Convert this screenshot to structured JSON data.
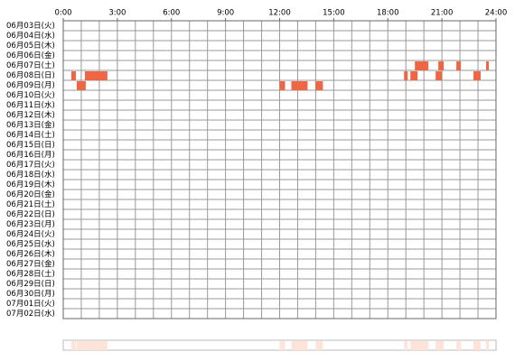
{
  "chart_data": {
    "type": "timeline",
    "xlim": [
      0,
      24
    ],
    "xticks": [
      {
        "value": 0,
        "label": "0:00"
      },
      {
        "value": 3,
        "label": "3:00"
      },
      {
        "value": 6,
        "label": "6:00"
      },
      {
        "value": 9,
        "label": "9:00"
      },
      {
        "value": 12,
        "label": "12:00"
      },
      {
        "value": 15,
        "label": "15:00"
      },
      {
        "value": 18,
        "label": "18:00"
      },
      {
        "value": 21,
        "label": "21:00"
      },
      {
        "value": 24,
        "label": "24:00"
      }
    ],
    "color": "#ee6644",
    "overview_color": "#fde3d8",
    "grid_color": "#999999",
    "categories": [
      "06月03日(火)",
      "06月04日(水)",
      "06月05日(木)",
      "06月06日(金)",
      "06月07日(土)",
      "06月08日(日)",
      "06月09日(月)",
      "06月10日(火)",
      "06月11日(水)",
      "06月12日(木)",
      "06月13日(金)",
      "06月14日(土)",
      "06月15日(日)",
      "06月16日(月)",
      "06月17日(火)",
      "06月18日(水)",
      "06月19日(木)",
      "06月20日(金)",
      "06月21日(土)",
      "06月22日(日)",
      "06月23日(月)",
      "06月24日(火)",
      "06月25日(水)",
      "06月26日(木)",
      "06月27日(金)",
      "06月28日(土)",
      "06月29日(日)",
      "06月30日(月)",
      "07月01日(火)",
      "07月02日(水)"
    ],
    "values": [
      [],
      [],
      [],
      [],
      [
        [
          19.5,
          20.25
        ],
        [
          20.8,
          21.1
        ],
        [
          21.8,
          22.05
        ],
        [
          23.45,
          23.6
        ]
      ],
      [
        [
          0.45,
          0.7
        ],
        [
          1.2,
          2.45
        ],
        [
          18.9,
          19.1
        ],
        [
          19.25,
          19.65
        ],
        [
          20.65,
          21.0
        ],
        [
          22.75,
          23.15
        ]
      ],
      [
        [
          0.75,
          1.25
        ],
        [
          12.0,
          12.3
        ],
        [
          12.65,
          13.55
        ],
        [
          14.0,
          14.4
        ]
      ],
      [],
      [],
      [],
      [],
      [],
      [],
      [],
      [],
      [],
      [],
      [],
      [],
      [],
      [],
      [],
      [],
      [],
      [],
      [],
      [],
      [],
      [],
      []
    ]
  }
}
